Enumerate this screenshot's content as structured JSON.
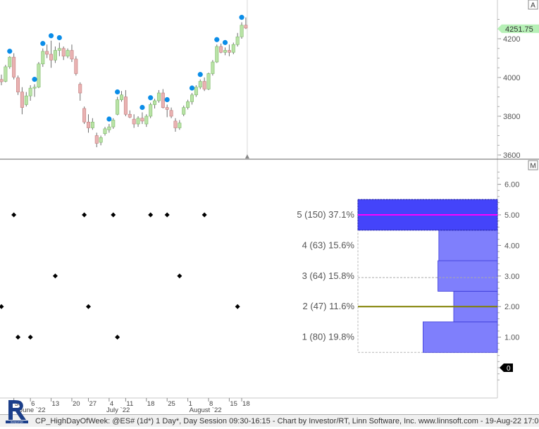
{
  "chart_data": [
    {
      "type": "candlestick",
      "title": "",
      "x": [
        "May 25",
        "May 26",
        "May 27",
        "May 31",
        "Jun 1",
        "Jun 2",
        "Jun 3",
        "Jun 6",
        "Jun 7",
        "Jun 8",
        "Jun 9",
        "Jun 10",
        "Jun 13",
        "Jun 14",
        "Jun 15",
        "Jun 16",
        "Jun 17",
        "Jun 21",
        "Jun 22",
        "Jun 23",
        "Jun 24",
        "Jun 27",
        "Jun 28",
        "Jun 29",
        "Jun 30",
        "Jul 1",
        "Jul 5",
        "Jul 6",
        "Jul 7",
        "Jul 8",
        "Jul 11",
        "Jul 12",
        "Jul 13",
        "Jul 14",
        "Jul 15",
        "Jul 18",
        "Jul 19",
        "Jul 20",
        "Jul 21",
        "Jul 22",
        "Jul 25",
        "Jul 26",
        "Jul 27",
        "Jul 28",
        "Jul 29",
        "Aug 1",
        "Aug 2",
        "Aug 3",
        "Aug 4",
        "Aug 5",
        "Aug 8",
        "Aug 9",
        "Aug 10",
        "Aug 11",
        "Aug 12",
        "Aug 15",
        "Aug 16",
        "Aug 17",
        "Aug 18",
        "Aug 19"
      ],
      "ohlc": [
        [
          3990,
          4015,
          3960,
          3978
        ],
        [
          3980,
          4065,
          3975,
          4055
        ],
        [
          4055,
          4110,
          4045,
          4105
        ],
        [
          4105,
          4125,
          3990,
          4002
        ],
        [
          3998,
          4010,
          3910,
          3925
        ],
        [
          3925,
          3950,
          3810,
          3845
        ],
        [
          3860,
          3925,
          3850,
          3905
        ],
        [
          3905,
          3960,
          3880,
          3945
        ],
        [
          3945,
          3965,
          3900,
          3950
        ],
        [
          3950,
          4080,
          3945,
          4070
        ],
        [
          4070,
          4150,
          4055,
          4135
        ],
        [
          4135,
          4170,
          4100,
          4120
        ],
        [
          4120,
          4190,
          4050,
          4090
        ],
        [
          4090,
          4160,
          4075,
          4140
        ],
        [
          4140,
          4180,
          4110,
          4150
        ],
        [
          4150,
          4160,
          4090,
          4110
        ],
        [
          4110,
          4150,
          4100,
          4140
        ],
        [
          4140,
          4170,
          4080,
          4095
        ],
        [
          4095,
          4110,
          4010,
          4020
        ],
        [
          3965,
          3975,
          3880,
          3920
        ],
        [
          3840,
          3850,
          3760,
          3770
        ],
        [
          3770,
          3810,
          3715,
          3740
        ],
        [
          3740,
          3790,
          3730,
          3770
        ],
        [
          3700,
          3715,
          3640,
          3660
        ],
        [
          3665,
          3700,
          3650,
          3690
        ],
        [
          3710,
          3745,
          3700,
          3735
        ],
        [
          3730,
          3760,
          3715,
          3745
        ],
        [
          3745,
          3790,
          3735,
          3780
        ],
        [
          3810,
          3900,
          3805,
          3885
        ],
        [
          3885,
          3930,
          3875,
          3910
        ],
        [
          3900,
          3935,
          3800,
          3810
        ],
        [
          3810,
          3830,
          3790,
          3795
        ],
        [
          3785,
          3810,
          3740,
          3760
        ],
        [
          3760,
          3800,
          3745,
          3790
        ],
        [
          3790,
          3820,
          3760,
          3775
        ],
        [
          3760,
          3810,
          3745,
          3800
        ],
        [
          3800,
          3870,
          3790,
          3860
        ],
        [
          3860,
          3890,
          3840,
          3880
        ],
        [
          3880,
          3935,
          3870,
          3920
        ],
        [
          3920,
          3940,
          3840,
          3845
        ],
        [
          3845,
          3860,
          3795,
          3835
        ],
        [
          3830,
          3845,
          3790,
          3800
        ],
        [
          3775,
          3790,
          3720,
          3740
        ],
        [
          3740,
          3780,
          3730,
          3765
        ],
        [
          3810,
          3855,
          3800,
          3845
        ],
        [
          3845,
          3885,
          3835,
          3875
        ],
        [
          3875,
          3920,
          3860,
          3910
        ],
        [
          3910,
          3960,
          3900,
          3950
        ],
        [
          3950,
          3990,
          3940,
          3980
        ],
        [
          3980,
          4000,
          3930,
          3940
        ],
        [
          3940,
          4025,
          3935,
          4020
        ],
        [
          4020,
          4090,
          4010,
          4080
        ],
        [
          4080,
          4170,
          4075,
          4160
        ],
        [
          4160,
          4175,
          4125,
          4130
        ],
        [
          4130,
          4155,
          4115,
          4140
        ],
        [
          4140,
          4170,
          4110,
          4130
        ],
        [
          4130,
          4180,
          4120,
          4170
        ],
        [
          4170,
          4230,
          4160,
          4210
        ],
        [
          4210,
          4285,
          4200,
          4270
        ],
        [
          4270,
          4310,
          4250,
          4255
        ]
      ],
      "high_markers": [
        2,
        8,
        10,
        12,
        14,
        26,
        28,
        34,
        36,
        40,
        46,
        48,
        52,
        54,
        58
      ],
      "y_ticks": [
        3600,
        3800,
        4000,
        4200
      ],
      "last_price": "4251.75",
      "x_tick_labels": [
        {
          "text": "30",
          "at": "May 30"
        },
        {
          "text": "6",
          "at": "Jun 6"
        },
        {
          "text": "13",
          "at": "Jun 13"
        },
        {
          "text": "20",
          "at": "Jun 20"
        },
        {
          "text": "27",
          "at": "Jun 27"
        },
        {
          "text": "4",
          "at": "Jul 4"
        },
        {
          "text": "11",
          "at": "Jul 11"
        },
        {
          "text": "18",
          "at": "Jul 18"
        },
        {
          "text": "25",
          "at": "Jul 25"
        },
        {
          "text": "1",
          "at": "Aug 1"
        },
        {
          "text": "8",
          "at": "Aug 8"
        },
        {
          "text": "15",
          "at": "Aug 15"
        },
        {
          "text": "18",
          "at": "Aug 18"
        }
      ],
      "month_labels": [
        {
          "text": "June `22",
          "at": "Jun 1"
        },
        {
          "text": "July `22",
          "at": "Jul 1"
        },
        {
          "text": "August `22",
          "at": "Aug 1"
        }
      ],
      "panel_label": "A",
      "up_color": "#b9e3a6",
      "down_color": "#e9b2b2",
      "marker_color": "#0b8de8"
    },
    {
      "type": "scatter",
      "title": "",
      "x": [
        30,
        6,
        13,
        20,
        27,
        4,
        11,
        18,
        25,
        1,
        8,
        15,
        18
      ],
      "points": [
        {
          "x": "May 25",
          "y": 2
        },
        {
          "x": "May 31",
          "y": 5
        },
        {
          "x": "Jun 1",
          "y": 1
        },
        {
          "x": "Jun 6",
          "y": 1
        },
        {
          "x": "Jun 14",
          "y": 3
        },
        {
          "x": "Jun 24",
          "y": 5
        },
        {
          "x": "Jun 27",
          "y": 2
        },
        {
          "x": "Jul 6",
          "y": 5
        },
        {
          "x": "Jul 7",
          "y": 1
        },
        {
          "x": "Jul 19",
          "y": 5
        },
        {
          "x": "Jul 25",
          "y": 5
        },
        {
          "x": "Jul 28",
          "y": 3
        },
        {
          "x": "Aug 5",
          "y": 5
        },
        {
          "x": "Aug 17",
          "y": 2
        }
      ],
      "y_ticks": [
        "1.00",
        "2.00",
        "3.00",
        "4.00",
        "5.00",
        "6.00"
      ],
      "ylim": [
        -0.4,
        6.5
      ],
      "histogram": [
        {
          "label": "1 (80) 19.8%",
          "day": 1,
          "count": 80,
          "percent": 19.8
        },
        {
          "label": "2 (47) 11.6%",
          "day": 2,
          "count": 47,
          "percent": 11.6
        },
        {
          "label": "3 (64) 15.8%",
          "day": 3,
          "count": 64,
          "percent": 15.8
        },
        {
          "label": "4 (63) 15.6%",
          "day": 4,
          "count": 63,
          "percent": 15.6
        },
        {
          "label": "5 (150) 37.1%",
          "day": 5,
          "count": 150,
          "percent": 37.1
        }
      ],
      "last_value": "0",
      "panel_label": "M",
      "bar_color": "#7f7ffc",
      "max_bar_color": "#4444fa",
      "mode_line_color": "#ff00ff",
      "median_line_color": "#808000"
    }
  ],
  "footer": {
    "text": "CP_HighDayOfWeek: @ES# (1d*) 1 Day*, Day Session 09:30-16:15 - Chart by Investor/RT, Linn Software, Inc. www.linnsoft.com - 19-Aug-22 17:05"
  }
}
